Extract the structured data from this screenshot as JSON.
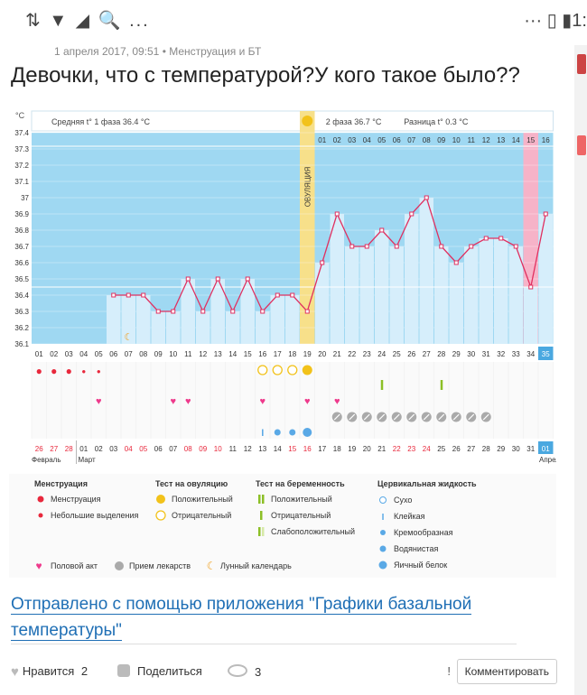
{
  "status_bar": {
    "left_icons": "⇅ ▼ ◢ 🔍 ...",
    "right_text": "··· ▯ ▮1:"
  },
  "post": {
    "meta": "1 апреля 2017, 09:51  •  Менструация и БТ",
    "title": "Девочки, что с температурой?У кого такое было??",
    "link_text": "Отправлено с помощью приложения \"Графики базальной температуры\""
  },
  "actions": {
    "like_label": "Нравится",
    "like_count": "2",
    "share_label": "Поделиться",
    "views_count": "3",
    "excl": "!",
    "comment_label": "Комментировать"
  },
  "chart_data": {
    "type": "line",
    "y_unit": "°C",
    "ylim": [
      36.1,
      37.4
    ],
    "y_ticks": [
      "37.4",
      "37.3",
      "37.2",
      "37.1",
      "37",
      "36.9",
      "36.8",
      "36.7",
      "36.6",
      "36.5",
      "36.4",
      "36.3",
      "36.2",
      "36.1"
    ],
    "cycle_days": [
      "01",
      "02",
      "03",
      "04",
      "05",
      "06",
      "07",
      "08",
      "09",
      "10",
      "11",
      "12",
      "13",
      "14",
      "15",
      "16",
      "17",
      "18",
      "19",
      "20",
      "21",
      "22",
      "23",
      "24",
      "25",
      "26",
      "27",
      "28",
      "29",
      "30",
      "31",
      "32",
      "33",
      "34",
      "35"
    ],
    "temperatures": [
      null,
      null,
      null,
      null,
      null,
      36.4,
      36.4,
      36.4,
      36.3,
      36.3,
      36.5,
      36.3,
      36.5,
      36.3,
      36.5,
      36.3,
      36.4,
      36.4,
      36.3,
      36.6,
      36.9,
      36.7,
      36.7,
      36.8,
      36.7,
      36.9,
      37.0,
      36.7,
      36.6,
      36.7,
      36.75,
      36.75,
      36.7,
      36.45,
      36.9
    ],
    "phase1_label": "Средняя t° 1 фаза",
    "phase1_value": "36.4 °C",
    "phase2_label": "2 фаза",
    "phase2_value": "36.7 °C",
    "diff_label": "Разница t°",
    "diff_value": "0.3 °C",
    "ovulation_label": "ОВУЛЯЦИЯ",
    "post_ovulation_days": [
      "01",
      "02",
      "03",
      "04",
      "05",
      "06",
      "07",
      "08",
      "09",
      "10",
      "11",
      "12",
      "13",
      "14",
      "15",
      "16"
    ],
    "calendar_dates": [
      "26",
      "27",
      "28",
      "01",
      "02",
      "03",
      "04",
      "05",
      "06",
      "07",
      "08",
      "09",
      "10",
      "11",
      "12",
      "13",
      "14",
      "15",
      "16",
      "17",
      "18",
      "19",
      "20",
      "21",
      "22",
      "23",
      "24",
      "25",
      "26",
      "27",
      "28",
      "29",
      "30",
      "31",
      "01"
    ],
    "red_dates_idx": [
      0,
      1,
      2,
      6,
      7,
      10,
      11,
      12,
      17,
      18,
      24,
      25,
      26
    ],
    "months": [
      "Февраль",
      "Март",
      "Апрел"
    ],
    "menstruation_big_idx": [
      0,
      1,
      2
    ],
    "menstruation_small_idx": [
      3,
      4
    ],
    "moon_idx": [
      6
    ],
    "ov_test_negative_idx": [
      15,
      16,
      17
    ],
    "ov_test_positive_idx": [
      18
    ],
    "preg_test_negative_idx": [
      23,
      27
    ],
    "intercourse_idx": [
      4,
      9,
      10,
      15,
      18,
      20
    ],
    "medication_idx": [
      20,
      21,
      22,
      23,
      24,
      25,
      26,
      27,
      28,
      29,
      30
    ],
    "mucus_sticky_idx": [
      15
    ],
    "mucus_creamy_idx": [
      16,
      17
    ],
    "mucus_watery_idx": [
      18
    ],
    "legend": {
      "menstruation_title": "Менструация",
      "menstruation": "Менструация",
      "spotting": "Небольшие выделения",
      "ov_test_title": "Тест на овуляцию",
      "ov_positive": "Положительный",
      "ov_negative": "Отрицательный",
      "preg_title": "Тест на беременность",
      "preg_positive": "Положительный",
      "preg_negative": "Отрицательный",
      "preg_weak": "Слабоположительный",
      "mucus_title": "Цервикальная жидкость",
      "mucus_dry": "Сухо",
      "mucus_sticky": "Клейкая",
      "mucus_creamy": "Кремообразная",
      "mucus_watery": "Водянистая",
      "mucus_egg": "Яичный белок",
      "intercourse": "Половой акт",
      "medication": "Прием лекарств",
      "lunar": "Лунный календарь"
    },
    "colors": {
      "phase_bg": "#9fd8f2",
      "bar": "#d6eefb",
      "line": "#e03060",
      "ovulation": "#f7e08a",
      "menstruation_day": "#f6b3c8",
      "red": "#e8283c",
      "pink": "#ee3a8c",
      "yellow": "#f2c21a",
      "green": "#8cbf26",
      "blue": "#5aa9e6",
      "orange": "#f0a020"
    }
  }
}
